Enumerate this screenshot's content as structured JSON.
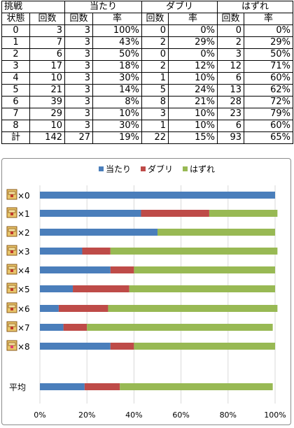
{
  "table": {
    "header_top": [
      "挑戦",
      "当たり",
      "ダブリ",
      "はずれ"
    ],
    "header_sub": [
      "状態",
      "回数",
      "回数",
      "率",
      "回数",
      "率",
      "回数",
      "率"
    ],
    "rows": [
      [
        "0",
        "3",
        "3",
        "100%",
        "0",
        "0%",
        "0",
        "0%"
      ],
      [
        "1",
        "7",
        "3",
        "43%",
        "2",
        "29%",
        "2",
        "29%"
      ],
      [
        "2",
        "6",
        "3",
        "50%",
        "0",
        "0%",
        "3",
        "50%"
      ],
      [
        "3",
        "17",
        "3",
        "18%",
        "2",
        "12%",
        "12",
        "71%"
      ],
      [
        "4",
        "10",
        "3",
        "30%",
        "1",
        "10%",
        "6",
        "60%"
      ],
      [
        "5",
        "21",
        "3",
        "14%",
        "5",
        "24%",
        "13",
        "62%"
      ],
      [
        "6",
        "39",
        "3",
        "8%",
        "8",
        "21%",
        "28",
        "72%"
      ],
      [
        "7",
        "29",
        "3",
        "10%",
        "3",
        "10%",
        "23",
        "79%"
      ],
      [
        "8",
        "10",
        "3",
        "30%",
        "1",
        "10%",
        "6",
        "60%"
      ],
      [
        "計",
        "142",
        "27",
        "19%",
        "22",
        "15%",
        "93",
        "65%"
      ]
    ]
  },
  "chart_data": {
    "type": "bar",
    "orientation": "horizontal",
    "stacked": "percent",
    "title": "",
    "categories": [
      "×0",
      "×1",
      "×2",
      "×3",
      "×4",
      "×5",
      "×6",
      "×7",
      "×8",
      "平均"
    ],
    "series": [
      {
        "name": "当たり",
        "color": "#4a7ebb",
        "values": [
          100,
          43,
          50,
          18,
          30,
          14,
          8,
          10,
          30,
          19
        ]
      },
      {
        "name": "ダブリ",
        "color": "#be4b48",
        "values": [
          0,
          29,
          0,
          12,
          10,
          24,
          21,
          10,
          10,
          15
        ]
      },
      {
        "name": "はずれ",
        "color": "#98b954",
        "values": [
          0,
          29,
          50,
          71,
          60,
          62,
          72,
          79,
          60,
          65
        ]
      }
    ],
    "xlim": [
      0,
      100
    ],
    "xticks": [
      "0%",
      "20%",
      "40%",
      "60%",
      "80%",
      "100%"
    ],
    "grid": true,
    "legend_position": "top",
    "category_icon": "treasure-chest-icon"
  }
}
